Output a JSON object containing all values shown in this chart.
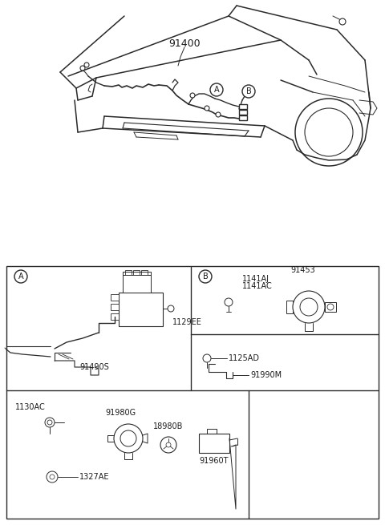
{
  "bg_color": "#ffffff",
  "line_color": "#2a2a2a",
  "text_color": "#1a1a1a",
  "fig_width": 4.8,
  "fig_height": 6.55,
  "dpi": 100,
  "car_label": "91400",
  "circle_A_label": "A",
  "circle_B_label": "B",
  "panel_A_label": "A",
  "panel_B_label": "B",
  "label_91490S": "91490S",
  "label_1129EE": "1129EE",
  "label_1141AJ": "1141AJ",
  "label_1141AC": "1141AC",
  "label_91453": "91453",
  "label_1125AD": "1125AD",
  "label_91990M": "91990M",
  "label_91980G": "91980G",
  "label_18980B": "18980B",
  "label_1130AC": "1130AC",
  "label_1327AE": "1327AE",
  "label_91960T": "91960T"
}
